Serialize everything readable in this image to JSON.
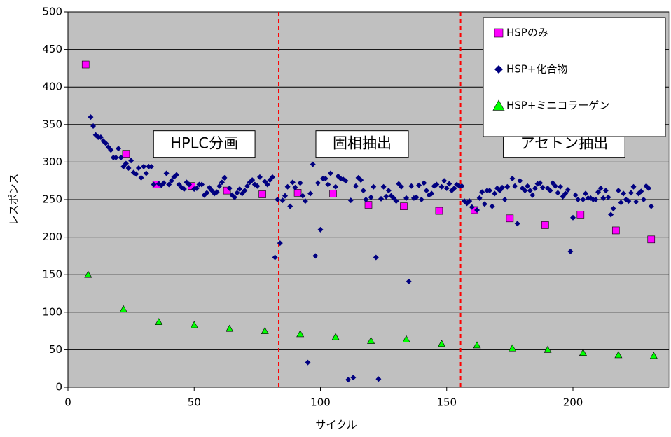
{
  "chart_data": {
    "type": "scatter",
    "x_label": "サイクル",
    "y_label": "レスポンス",
    "xlim": [
      0,
      238
    ],
    "ylim": [
      0,
      500
    ],
    "xticks": [
      0,
      50,
      100,
      150,
      200
    ],
    "yticks": [
      0,
      50,
      100,
      150,
      200,
      250,
      300,
      350,
      400,
      450,
      500
    ],
    "grid": true,
    "legend": "upper right",
    "vlines": [
      83.5,
      155.5
    ],
    "vline_color": "#ff0000",
    "annotations": [
      {
        "text": "HPLC分画",
        "x": 54,
        "y": 324
      },
      {
        "text": "固相抽出",
        "x": 116.5,
        "y": 324
      },
      {
        "text": "アセトン抽出",
        "x": 196.5,
        "y": 324
      }
    ],
    "series": [
      {
        "name": "HSPのみ",
        "color": "#ff00ff",
        "marker": "square",
        "x": [
          7,
          23,
          35,
          49,
          63,
          77,
          91,
          105,
          119,
          133,
          147,
          161,
          175,
          189,
          203,
          217,
          231
        ],
        "values": [
          430,
          311,
          270,
          268,
          262,
          257,
          259,
          258,
          243,
          241,
          235,
          236,
          225,
          216,
          230,
          209,
          197
        ]
      },
      {
        "name": "HSP+化合物",
        "color": "#000080",
        "marker": "diamond",
        "x": [
          9,
          10,
          11,
          12,
          13,
          14,
          15,
          16,
          17,
          18,
          19,
          20,
          21,
          22,
          23,
          24,
          25,
          26,
          27,
          28,
          29,
          30,
          31,
          32,
          33,
          34,
          36,
          37,
          38,
          39,
          40,
          41,
          42,
          43,
          44,
          45,
          46,
          47,
          48,
          50,
          51,
          52,
          53,
          54,
          55,
          56,
          57,
          58,
          59,
          60,
          61,
          62,
          64,
          65,
          66,
          67,
          68,
          69,
          70,
          71,
          72,
          73,
          74,
          75,
          76,
          78,
          79,
          80,
          81,
          82,
          83,
          84,
          85,
          86,
          87,
          88,
          89,
          90,
          92,
          93,
          94,
          95,
          96,
          97,
          98,
          99,
          100,
          101,
          102,
          103,
          104,
          106,
          107,
          108,
          109,
          110,
          111,
          112,
          113,
          114,
          115,
          116,
          117,
          118,
          120,
          121,
          122,
          123,
          124,
          125,
          126,
          127,
          128,
          129,
          130,
          131,
          132,
          134,
          135,
          136,
          137,
          138,
          139,
          140,
          141,
          142,
          143,
          144,
          145,
          146,
          148,
          149,
          150,
          151,
          152,
          153,
          154,
          155,
          156,
          157,
          158,
          159,
          160,
          162,
          163,
          164,
          165,
          166,
          167,
          168,
          169,
          170,
          171,
          172,
          173,
          174,
          176,
          177,
          178,
          179,
          180,
          181,
          182,
          183,
          184,
          185,
          186,
          187,
          188,
          190,
          191,
          192,
          193,
          194,
          195,
          196,
          197,
          198,
          199,
          200,
          201,
          202,
          204,
          205,
          206,
          207,
          208,
          209,
          210,
          211,
          212,
          213,
          214,
          215,
          216,
          218,
          219,
          220,
          221,
          222,
          223,
          224,
          225,
          226,
          227,
          228,
          229,
          230,
          231
        ],
        "values": [
          360,
          348,
          336,
          333,
          333,
          328,
          325,
          320,
          316,
          306,
          306,
          318,
          306,
          294,
          298,
          292,
          302,
          286,
          284,
          292,
          279,
          294,
          285,
          294,
          294,
          270,
          271,
          269,
          272,
          285,
          270,
          275,
          280,
          283,
          270,
          266,
          264,
          273,
          270,
          264,
          265,
          270,
          270,
          256,
          259,
          266,
          262,
          258,
          260,
          268,
          273,
          279,
          265,
          256,
          253,
          259,
          264,
          258,
          262,
          268,
          273,
          276,
          270,
          268,
          280,
          274,
          270,
          276,
          280,
          173,
          250,
          192,
          249,
          255,
          267,
          241,
          273,
          266,
          272,
          255,
          248,
          33,
          258,
          297,
          175,
          272,
          210,
          278,
          278,
          270,
          285,
          267,
          281,
          278,
          277,
          275,
          10,
          249,
          13,
          268,
          279,
          276,
          262,
          250,
          253,
          267,
          173,
          11,
          251,
          267,
          254,
          262,
          255,
          252,
          248,
          271,
          267,
          252,
          141,
          268,
          252,
          253,
          269,
          250,
          272,
          262,
          256,
          258,
          268,
          270,
          267,
          275,
          265,
          271,
          262,
          265,
          270,
          268,
          268,
          248,
          245,
          248,
          240,
          236,
          252,
          260,
          244,
          262,
          262,
          241,
          258,
          265,
          262,
          266,
          250,
          267,
          278,
          268,
          218,
          275,
          265,
          262,
          268,
          262,
          256,
          265,
          271,
          272,
          266,
          265,
          262,
          272,
          268,
          259,
          267,
          254,
          258,
          263,
          181,
          226,
          256,
          250,
          250,
          258,
          252,
          252,
          250,
          250,
          260,
          265,
          252,
          262,
          253,
          230,
          238,
          262,
          246,
          258,
          250,
          248,
          259,
          267,
          247,
          258,
          261,
          250,
          268,
          265,
          241
        ]
      },
      {
        "name": "HSP+ミニコラーゲン",
        "color": "#00ff00",
        "marker": "triangle",
        "x": [
          8,
          22,
          36,
          50,
          64,
          78,
          92,
          106,
          120,
          134,
          148,
          162,
          176,
          190,
          204,
          218,
          232
        ],
        "values": [
          150,
          104,
          87,
          83,
          78,
          75,
          71,
          67,
          62,
          64,
          58,
          56,
          52,
          50,
          46,
          43,
          42
        ]
      }
    ]
  }
}
